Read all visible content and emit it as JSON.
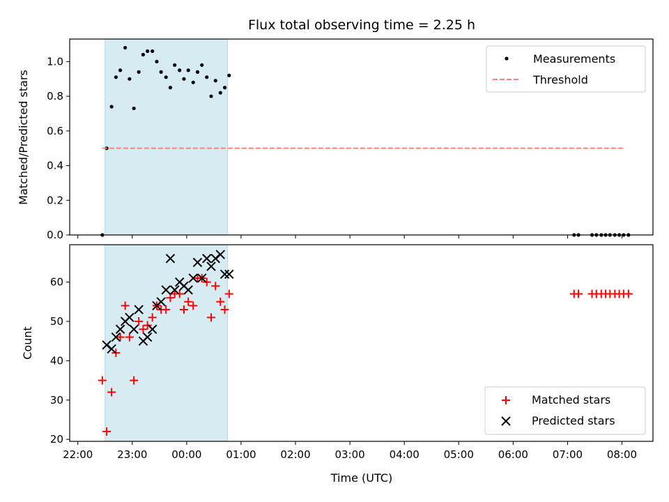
{
  "chart_data": {
    "title": "Flux total observing time = 2.25 h",
    "xlabel": "Time (UTC)",
    "x_unit": "hours (UTC, 22:00 = 22; values above 24 are after midnight)",
    "xlim": [
      21.85,
      32.57
    ],
    "x_ticks": [
      22,
      23,
      24,
      25,
      26,
      27,
      28,
      29,
      30,
      31,
      32
    ],
    "x_tick_labels": [
      "22:00",
      "23:00",
      "00:00",
      "01:00",
      "02:00",
      "03:00",
      "04:00",
      "05:00",
      "06:00",
      "07:00",
      "08:00"
    ],
    "highlight_span": {
      "x_start": 22.5,
      "x_end": 24.75,
      "color": "#add8e6"
    },
    "grid": false,
    "panels": [
      {
        "type": "scatter",
        "ylabel": "Matched/Predicted stars",
        "ylim": [
          0,
          1.13
        ],
        "y_ticks": [
          0,
          0.2,
          0.4,
          0.6,
          0.8,
          1.0
        ],
        "y_tick_labels": [
          "0.0",
          "0.2",
          "0.4",
          "0.6",
          "0.8",
          "1.0"
        ],
        "legend_position": "upper right",
        "series": [
          {
            "name": "Measurements",
            "kind": "points",
            "marker": "dot",
            "color": "#000000",
            "x": [
              22.45,
              22.53,
              22.62,
              22.7,
              22.78,
              22.87,
              22.95,
              23.03,
              23.12,
              23.2,
              23.28,
              23.37,
              23.45,
              23.53,
              23.62,
              23.7,
              23.78,
              23.87,
              23.95,
              24.03,
              24.12,
              24.2,
              24.28,
              24.37,
              24.45,
              24.53,
              24.62,
              24.7,
              24.78,
              31.12,
              31.2,
              31.45,
              31.53,
              31.62,
              31.7,
              31.78,
              31.87,
              31.95,
              32.03,
              32.12
            ],
            "y": [
              0.0,
              0.5,
              0.74,
              0.91,
              0.95,
              1.08,
              0.9,
              0.73,
              0.94,
              1.04,
              1.06,
              1.06,
              1.0,
              0.94,
              0.91,
              0.85,
              0.98,
              0.95,
              0.9,
              0.95,
              0.88,
              0.94,
              0.98,
              0.91,
              0.8,
              0.89,
              0.82,
              0.85,
              0.92,
              0.0,
              0.0,
              0.0,
              0.0,
              0.0,
              0.0,
              0.0,
              0.0,
              0.0,
              0.0,
              0.0
            ]
          },
          {
            "name": "Threshold",
            "kind": "line",
            "style": "dashed",
            "color": "#ff7f7f",
            "x": [
              22.45,
              32.05
            ],
            "y": [
              0.5,
              0.5
            ]
          }
        ]
      },
      {
        "type": "scatter",
        "ylabel": "Count",
        "ylim": [
          19.5,
          69.5
        ],
        "y_ticks": [
          20,
          30,
          40,
          50,
          60
        ],
        "y_tick_labels": [
          "20",
          "30",
          "40",
          "50",
          "60"
        ],
        "legend_position": "lower right",
        "series": [
          {
            "name": "Matched stars",
            "kind": "points",
            "marker": "plus",
            "color": "#ff0000",
            "x": [
              22.45,
              22.53,
              22.62,
              22.7,
              22.78,
              22.87,
              22.95,
              23.03,
              23.12,
              23.2,
              23.28,
              23.37,
              23.45,
              23.53,
              23.62,
              23.7,
              23.78,
              23.87,
              23.95,
              24.03,
              24.12,
              24.2,
              24.28,
              24.37,
              24.45,
              24.53,
              24.62,
              24.7,
              24.78,
              31.12,
              31.2,
              31.45,
              31.53,
              31.62,
              31.7,
              31.78,
              31.87,
              31.95,
              32.03,
              32.12
            ],
            "y": [
              35,
              22,
              32,
              42,
              46,
              54,
              46,
              35,
              50,
              48,
              49,
              51,
              54,
              53,
              53,
              56,
              57,
              57,
              53,
              55,
              54,
              61,
              61,
              60,
              51,
              59,
              55,
              53,
              57,
              57,
              57,
              57,
              57,
              57,
              57,
              57,
              57,
              57,
              57,
              57
            ]
          },
          {
            "name": "Predicted stars",
            "kind": "points",
            "marker": "x",
            "color": "#000000",
            "x": [
              22.53,
              22.62,
              22.7,
              22.78,
              22.87,
              22.95,
              23.03,
              23.12,
              23.2,
              23.28,
              23.37,
              23.45,
              23.53,
              23.62,
              23.7,
              23.78,
              23.87,
              23.95,
              24.03,
              24.12,
              24.2,
              24.28,
              24.37,
              24.45,
              24.53,
              24.62,
              24.7,
              24.78
            ],
            "y": [
              44,
              43,
              46,
              48,
              50,
              51,
              48,
              53,
              45,
              46,
              48,
              54,
              55,
              58,
              66,
              58,
              60,
              59,
              58,
              61,
              65,
              61,
              66,
              64,
              66,
              67,
              62,
              62
            ]
          }
        ]
      }
    ]
  }
}
